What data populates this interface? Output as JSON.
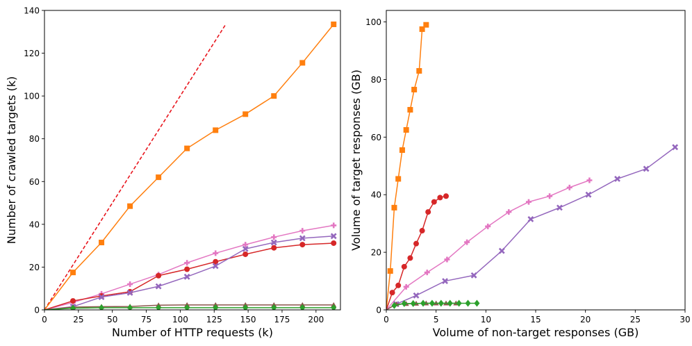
{
  "chart_data": [
    {
      "type": "line",
      "xlabel": "Number of HTTP requests (k)",
      "ylabel": "Number of crawled targets (k)",
      "xlim": [
        0,
        218
      ],
      "ylim": [
        0,
        140
      ],
      "xticks": [
        0,
        25,
        50,
        75,
        100,
        125,
        150,
        175,
        200
      ],
      "yticks": [
        0,
        20,
        40,
        60,
        80,
        100,
        120,
        140
      ],
      "grid": false,
      "reference_line": {
        "style": "dashed",
        "color": "#e8141c",
        "x": [
          0,
          133
        ],
        "y": [
          0,
          133
        ]
      },
      "series": [
        {
          "color": "#ff7f0e",
          "marker": "square",
          "x": [
            0,
            21,
            42,
            63,
            84,
            105,
            126,
            148,
            169,
            190,
            213
          ],
          "y": [
            0,
            17.5,
            31.5,
            48.5,
            62,
            75.5,
            84,
            91.5,
            100,
            115.5,
            133.5
          ]
        },
        {
          "color": "#e377c2",
          "marker": "plus",
          "x": [
            0,
            21,
            42,
            63,
            84,
            105,
            126,
            148,
            169,
            190,
            213
          ],
          "y": [
            0,
            3.5,
            7.5,
            12,
            16.5,
            22,
            26.5,
            30.5,
            34,
            37,
            39.5
          ]
        },
        {
          "color": "#d62728",
          "marker": "circle",
          "x": [
            0,
            21,
            42,
            63,
            84,
            105,
            126,
            148,
            169,
            190,
            213
          ],
          "y": [
            0,
            4.2,
            6.5,
            8.5,
            16,
            19,
            22.5,
            26,
            29,
            30.5,
            31.2
          ]
        },
        {
          "color": "#9467bd",
          "marker": "x",
          "x": [
            0,
            21,
            42,
            63,
            84,
            105,
            126,
            148,
            169,
            190,
            213
          ],
          "y": [
            0,
            1.5,
            6,
            8,
            11,
            15.5,
            20.5,
            28.5,
            31.5,
            33.5,
            34.5
          ]
        },
        {
          "color": "#8c564b",
          "marker": "triangle",
          "x": [
            0,
            21,
            42,
            63,
            84,
            105,
            126,
            148,
            169,
            190,
            213
          ],
          "y": [
            0,
            1.3,
            1.5,
            1.6,
            2.2,
            2.3,
            2.3,
            2.3,
            2.3,
            2.3,
            2.3
          ]
        },
        {
          "color": "#2ca02c",
          "marker": "diamond",
          "x": [
            0,
            21,
            42,
            63,
            84,
            105,
            126,
            148,
            169,
            190,
            213
          ],
          "y": [
            0,
            0.8,
            1,
            1,
            1,
            1,
            1,
            1,
            1,
            1,
            1
          ]
        }
      ]
    },
    {
      "type": "line",
      "xlabel": "Volume of non-target responses (GB)",
      "ylabel": "Volume of target responses (GB)",
      "xlim": [
        0,
        30
      ],
      "ylim": [
        0,
        104
      ],
      "xticks": [
        0,
        5,
        10,
        15,
        20,
        25,
        30
      ],
      "yticks": [
        0,
        20,
        40,
        60,
        80,
        100
      ],
      "grid": false,
      "series": [
        {
          "color": "#ff7f0e",
          "marker": "square",
          "x": [
            0,
            0.4,
            0.8,
            1.2,
            1.6,
            2.0,
            2.4,
            2.8,
            3.3,
            3.6,
            4.0
          ],
          "y": [
            0,
            13.5,
            35.5,
            45.5,
            55.5,
            62.5,
            69.5,
            76.5,
            83,
            97.5,
            99
          ]
        },
        {
          "color": "#e377c2",
          "marker": "plus",
          "x": [
            0,
            2.0,
            4.1,
            6.1,
            8.1,
            10.2,
            12.3,
            14.3,
            16.4,
            18.4,
            20.4
          ],
          "y": [
            0,
            8,
            13,
            17.5,
            23.5,
            29,
            34,
            37.5,
            39.5,
            42.5,
            45
          ]
        },
        {
          "color": "#d62728",
          "marker": "circle",
          "x": [
            0,
            0.6,
            1.2,
            1.8,
            2.4,
            3.0,
            3.6,
            4.2,
            4.8,
            5.4,
            6.0
          ],
          "y": [
            0,
            6,
            8.5,
            15,
            18,
            23,
            27.5,
            34,
            37.5,
            39,
            39.5
          ]
        },
        {
          "color": "#9467bd",
          "marker": "x",
          "x": [
            0,
            1.0,
            3.0,
            5.9,
            8.8,
            11.6,
            14.5,
            17.4,
            20.3,
            23.2,
            26.1,
            29.0
          ],
          "y": [
            0,
            2,
            5,
            10,
            12,
            20.5,
            31.5,
            35.5,
            40,
            45.5,
            49,
            56.5
          ]
        },
        {
          "color": "#8c564b",
          "marker": "triangle",
          "x": [
            0,
            1.0,
            2.0,
            3.0,
            4.0,
            5.0,
            6.0,
            7.0
          ],
          "y": [
            0,
            2,
            2.1,
            2.2,
            2.3,
            2.3,
            2.3,
            2.3
          ]
        },
        {
          "color": "#2ca02c",
          "marker": "diamond",
          "x": [
            0.8,
            1.8,
            2.7,
            3.7,
            4.6,
            5.5,
            6.4,
            7.3,
            8.2,
            9.1
          ],
          "y": [
            1.5,
            2.2,
            2.2,
            2.3,
            2.3,
            2.3,
            2.3,
            2.3,
            2.3,
            2.3
          ]
        }
      ]
    }
  ]
}
